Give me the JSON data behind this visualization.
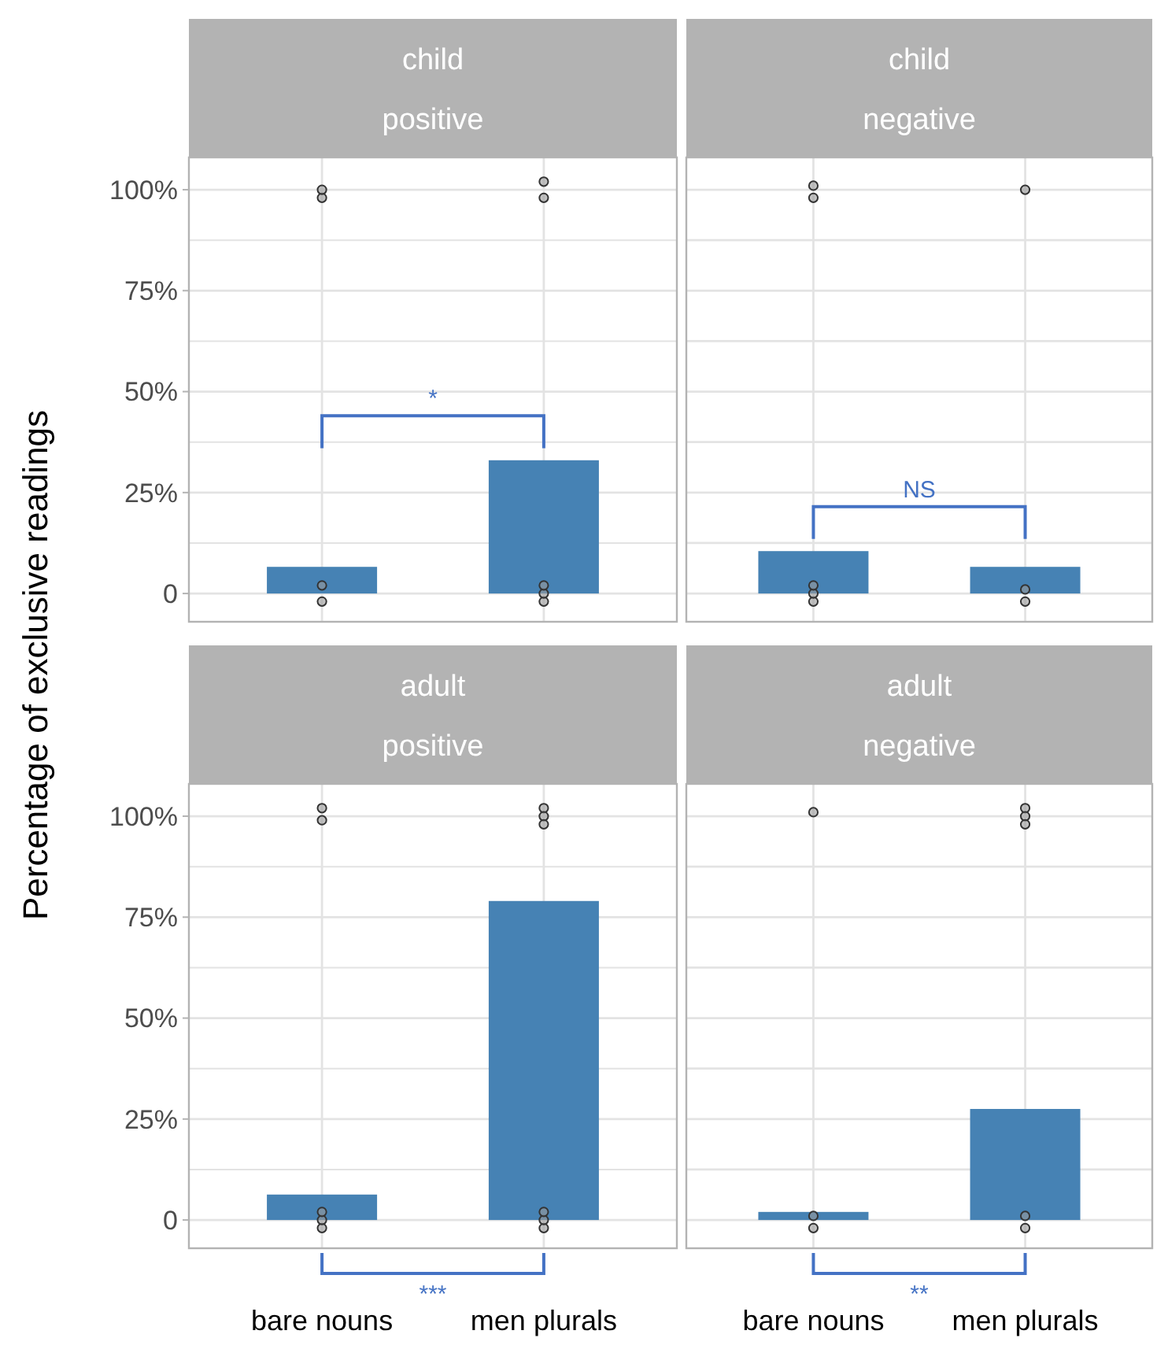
{
  "chart_data": [
    {
      "type": "bar",
      "title": "child",
      "subtitle": "positive",
      "ylabel": "Percentage of exclusive readings",
      "categories": [
        "bare nouns",
        "men plurals"
      ],
      "ylim": [
        -7,
        108
      ],
      "yticks": [
        0,
        {
          "value": 12.5,
          "label": null
        },
        {
          "value": 25,
          "label": "25%"
        },
        {
          "value": 37.5,
          "label": null
        },
        {
          "value": 50,
          "label": "50%"
        },
        {
          "value": 62.5,
          "label": null
        },
        {
          "value": 75,
          "label": "75%"
        },
        {
          "value": 87.5,
          "label": null
        },
        {
          "value": 100,
          "label": "100%"
        }
      ],
      "grid": true,
      "marker": "circle",
      "tick_labels": "y",
      "annotations": [
        "*"
      ],
      "series": [
        {
          "type": "bar",
          "color": "#4682b4",
          "values": [
            6.6,
            33
          ]
        },
        {
          "type": "scatter",
          "color": "#333333",
          "x": [
            "bare nouns",
            "bare nouns",
            "bare nouns",
            "bare nouns",
            "men plurals",
            "men plurals",
            "men plurals",
            "men plurals",
            "men plurals"
          ],
          "values": [
            98,
            100,
            -2,
            2,
            102,
            98,
            -2,
            0,
            2
          ]
        }
      ]
    },
    {
      "type": "bar",
      "title": "child",
      "subtitle": "negative",
      "categories": [
        "bare nouns",
        "men plurals"
      ],
      "ylim": [
        -7,
        108
      ],
      "yticks": [
        0,
        12.5,
        25,
        37.5,
        50,
        62.5,
        75,
        87.5,
        100
      ],
      "grid": true,
      "marker": "circle",
      "tick_labels": false,
      "annotations": [
        "NS"
      ],
      "series": [
        {
          "type": "bar",
          "color": "#4682b4",
          "values": [
            10.5,
            6.6
          ]
        },
        {
          "type": "scatter",
          "color": "#333333",
          "x": [
            "bare nouns",
            "bare nouns",
            "bare nouns",
            "bare nouns",
            "bare nouns",
            "men plurals",
            "men plurals",
            "men plurals"
          ],
          "values": [
            98,
            101,
            -2,
            0,
            2,
            100,
            -2,
            1
          ]
        }
      ]
    },
    {
      "type": "bar",
      "title": "adult",
      "subtitle": "positive",
      "categories": [
        "bare nouns",
        "men plurals"
      ],
      "ylim": [
        -7,
        108
      ],
      "yticks": [
        0,
        {
          "value": 12.5,
          "label": null
        },
        {
          "value": 25,
          "label": "25%"
        },
        {
          "value": 37.5,
          "label": null
        },
        {
          "value": 50,
          "label": "50%"
        },
        {
          "value": 62.5,
          "label": null
        },
        {
          "value": 75,
          "label": "75%"
        },
        {
          "value": 87.5,
          "label": null
        },
        {
          "value": 100,
          "label": "100%"
        }
      ],
      "grid": true,
      "marker": "circle",
      "annotations": [
        "***"
      ],
      "series": [
        {
          "type": "bar",
          "color": "#4682b4",
          "values": [
            6.3,
            79
          ]
        },
        {
          "type": "scatter",
          "color": "#333333",
          "x": [
            "bare nouns",
            "bare nouns",
            "bare nouns",
            "bare nouns",
            "bare nouns",
            "men plurals",
            "men plurals",
            "men plurals",
            "men plurals",
            "men plurals",
            "men plurals"
          ],
          "values": [
            99,
            102,
            -2,
            0,
            2,
            102,
            100,
            98,
            -2,
            0,
            2
          ]
        }
      ]
    },
    {
      "type": "bar",
      "title": "adult",
      "subtitle": "negative",
      "categories": [
        "bare nouns",
        "men plurals"
      ],
      "ylim": [
        -7,
        108
      ],
      "yticks": [
        0,
        12.5,
        25,
        37.5,
        50,
        62.5,
        75,
        87.5,
        100
      ],
      "grid": true,
      "marker": "circle",
      "tick_labels": "x",
      "annotations": [
        "**"
      ],
      "series": [
        {
          "type": "bar",
          "color": "#4682b4",
          "values": [
            2,
            27.5
          ]
        },
        {
          "type": "scatter",
          "color": "#333333",
          "x": [
            "bare nouns",
            "bare nouns",
            "bare nouns",
            "men plurals",
            "men plurals",
            "men plurals",
            "men plurals",
            "men plurals"
          ],
          "values": [
            101,
            -2,
            1,
            102,
            100,
            98,
            -2,
            1
          ]
        }
      ]
    }
  ]
}
